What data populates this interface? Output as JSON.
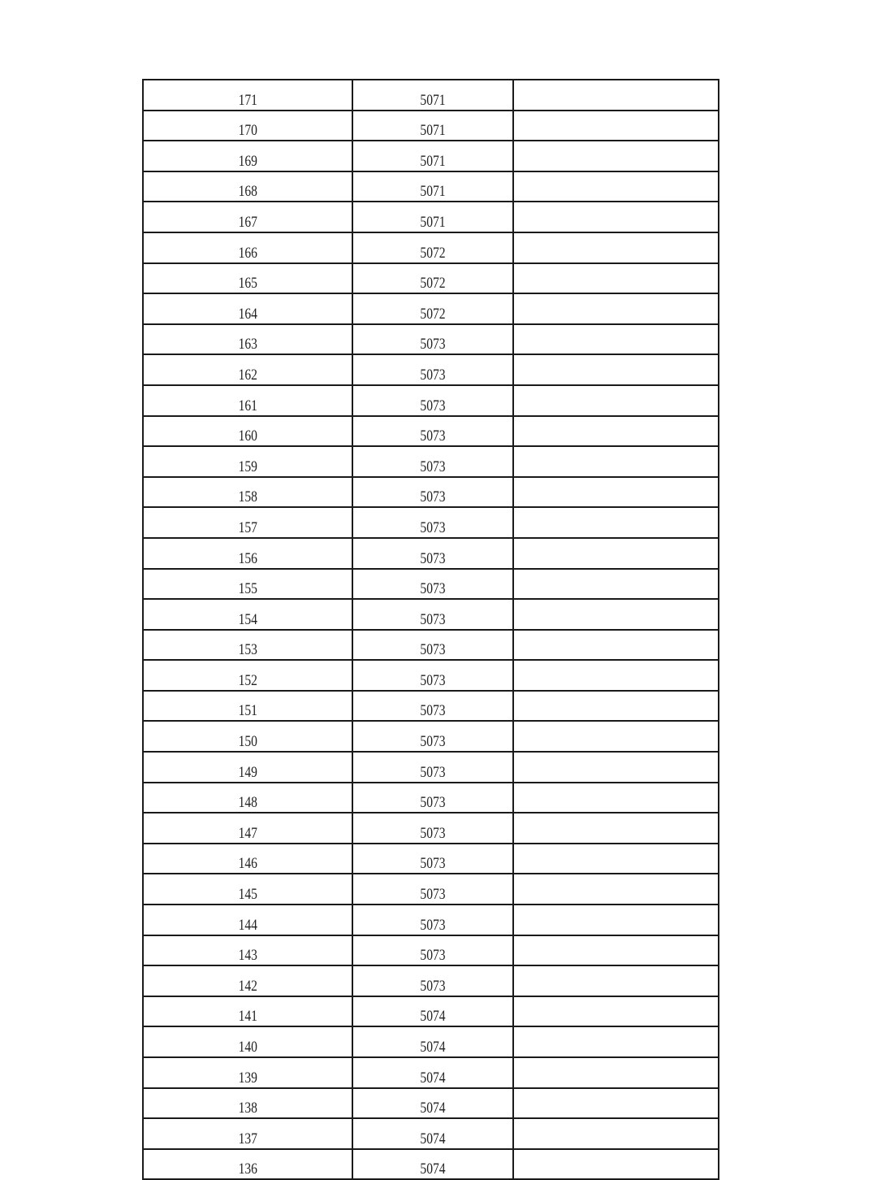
{
  "table": {
    "rows": [
      {
        "score": "171",
        "rank": "5071",
        "note": ""
      },
      {
        "score": "170",
        "rank": "5071",
        "note": ""
      },
      {
        "score": "169",
        "rank": "5071",
        "note": ""
      },
      {
        "score": "168",
        "rank": "5071",
        "note": ""
      },
      {
        "score": "167",
        "rank": "5071",
        "note": ""
      },
      {
        "score": "166",
        "rank": "5072",
        "note": ""
      },
      {
        "score": "165",
        "rank": "5072",
        "note": ""
      },
      {
        "score": "164",
        "rank": "5072",
        "note": ""
      },
      {
        "score": "163",
        "rank": "5073",
        "note": ""
      },
      {
        "score": "162",
        "rank": "5073",
        "note": ""
      },
      {
        "score": "161",
        "rank": "5073",
        "note": ""
      },
      {
        "score": "160",
        "rank": "5073",
        "note": ""
      },
      {
        "score": "159",
        "rank": "5073",
        "note": ""
      },
      {
        "score": "158",
        "rank": "5073",
        "note": ""
      },
      {
        "score": "157",
        "rank": "5073",
        "note": ""
      },
      {
        "score": "156",
        "rank": "5073",
        "note": ""
      },
      {
        "score": "155",
        "rank": "5073",
        "note": ""
      },
      {
        "score": "154",
        "rank": "5073",
        "note": ""
      },
      {
        "score": "153",
        "rank": "5073",
        "note": ""
      },
      {
        "score": "152",
        "rank": "5073",
        "note": ""
      },
      {
        "score": "151",
        "rank": "5073",
        "note": ""
      },
      {
        "score": "150",
        "rank": "5073",
        "note": ""
      },
      {
        "score": "149",
        "rank": "5073",
        "note": ""
      },
      {
        "score": "148",
        "rank": "5073",
        "note": ""
      },
      {
        "score": "147",
        "rank": "5073",
        "note": ""
      },
      {
        "score": "146",
        "rank": "5073",
        "note": ""
      },
      {
        "score": "145",
        "rank": "5073",
        "note": ""
      },
      {
        "score": "144",
        "rank": "5073",
        "note": ""
      },
      {
        "score": "143",
        "rank": "5073",
        "note": ""
      },
      {
        "score": "142",
        "rank": "5073",
        "note": ""
      },
      {
        "score": "141",
        "rank": "5074",
        "note": ""
      },
      {
        "score": "140",
        "rank": "5074",
        "note": ""
      },
      {
        "score": "139",
        "rank": "5074",
        "note": ""
      },
      {
        "score": "138",
        "rank": "5074",
        "note": ""
      },
      {
        "score": "137",
        "rank": "5074",
        "note": ""
      },
      {
        "score": "136",
        "rank": "5074",
        "note": ""
      }
    ]
  }
}
